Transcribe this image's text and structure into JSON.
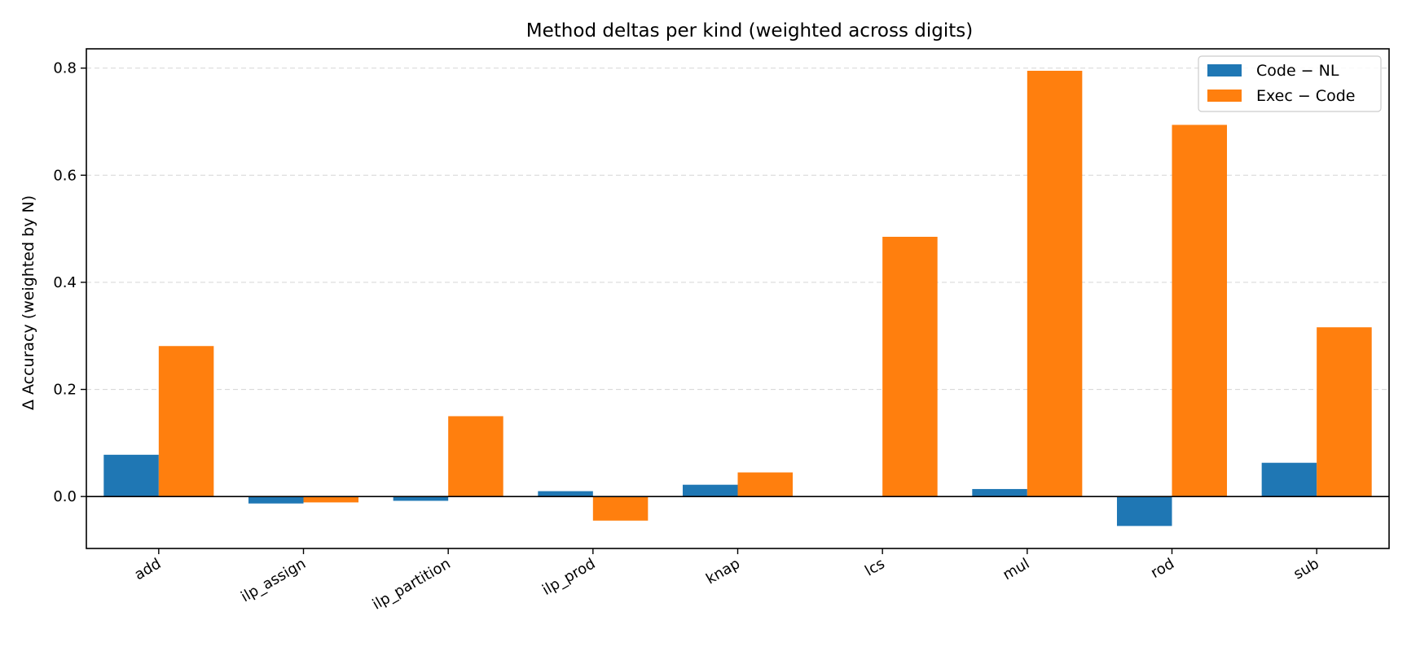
{
  "chart_data": {
    "type": "bar",
    "title": "Method deltas per kind (weighted across digits)",
    "xlabel": "",
    "ylabel": "Δ Accuracy (weighted by N)",
    "categories": [
      "add",
      "ilp_assign",
      "ilp_partition",
      "ilp_prod",
      "knap",
      "lcs",
      "mul",
      "rod",
      "sub"
    ],
    "series": [
      {
        "name": "Code − NL",
        "color": "#1f77b4",
        "values": [
          0.078,
          -0.013,
          -0.008,
          0.01,
          0.022,
          0.0,
          0.014,
          -0.055,
          0.063
        ]
      },
      {
        "name": "Exec − Code",
        "color": "#ff7f0e",
        "values": [
          0.281,
          -0.011,
          0.15,
          -0.045,
          0.045,
          0.485,
          0.795,
          0.694,
          0.316
        ]
      }
    ],
    "ylim": [
      -0.097,
      0.836
    ],
    "yticks": [
      0.0,
      0.2,
      0.4,
      0.6,
      0.8
    ],
    "ytick_labels": [
      "0.0",
      "0.2",
      "0.4",
      "0.6",
      "0.8"
    ],
    "grid": "y-dashed",
    "legend": "top-right"
  }
}
